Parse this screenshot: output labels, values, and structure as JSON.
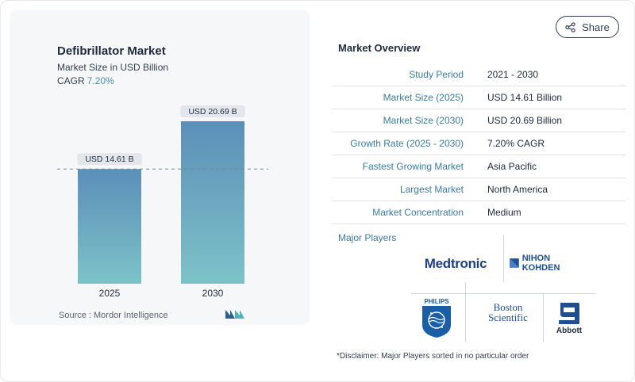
{
  "chart": {
    "title": "Defibrillator Market",
    "subtitle": "Market Size in USD Billion",
    "cagr_label": "CAGR",
    "cagr_value": "7.20%",
    "source": "Source :  Mordor Intelligence"
  },
  "chart_data": {
    "type": "bar",
    "title": "Defibrillator Market",
    "subtitle": "Market Size in USD Billion",
    "categories": [
      "2025",
      "2030"
    ],
    "values": [
      14.61,
      20.69
    ],
    "data_labels": [
      "USD 14.61 B",
      "USD 20.69 B"
    ],
    "xlabel": "",
    "ylabel": "",
    "ylim": [
      0,
      22
    ],
    "reference_line_value": 14.61,
    "grid": false,
    "bar_gradient": [
      "#5b8fb8",
      "#7dc2c8"
    ]
  },
  "share": {
    "label": "Share"
  },
  "overview": {
    "title": "Market Overview",
    "rows": [
      {
        "label": "Study Period",
        "value": "2021 - 2030"
      },
      {
        "label": "Market Size (2025)",
        "value": "USD 14.61 Billion"
      },
      {
        "label": "Market Size (2030)",
        "value": "USD 20.69 Billion"
      },
      {
        "label": "Growth Rate (2025 - 2030)",
        "value": "7.20% CAGR"
      },
      {
        "label": "Fastest Growing Market",
        "value": "Asia Pacific"
      },
      {
        "label": "Largest Market",
        "value": "North America"
      },
      {
        "label": "Market Concentration",
        "value": "Medium"
      }
    ]
  },
  "players": {
    "title": "Major Players",
    "logos": {
      "medtronic": "Medtronic",
      "nihon": "NIHON KOHDEN",
      "philips": "PHILIPS",
      "boston_line1": "Boston",
      "boston_line2": "Scientific",
      "abbott": "Abbott"
    }
  },
  "disclaimer": "*Disclaimer: Major Players sorted in no particular order"
}
